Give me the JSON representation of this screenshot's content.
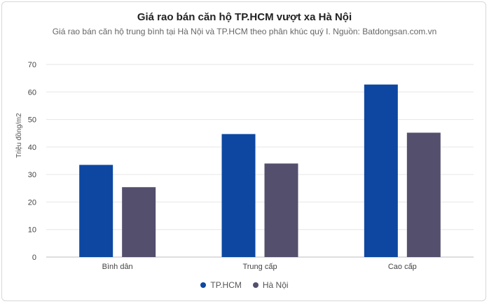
{
  "colors": {
    "grid": "#e6e6e6",
    "axis": "#bdbdbd",
    "tick_text": "#444444",
    "label_text": "#555555"
  },
  "chart_data": {
    "type": "bar",
    "title": "Giá rao bán căn hộ TP.HCM vượt xa Hà Nội",
    "subtitle": "Giá rao bán căn hộ trung bình tại Hà Nội và TP.HCM theo phân khúc quý I. Nguồn: Batdongsan.com.vn",
    "ylabel": "Triệu đồng/m2",
    "xlabel": "",
    "ylim": [
      0,
      70
    ],
    "yticks": [
      0,
      10,
      20,
      30,
      40,
      50,
      60,
      70
    ],
    "categories": [
      "Bình dân",
      "Trung cấp",
      "Cao cấp"
    ],
    "grid": true,
    "legend_position": "bottom-center",
    "series": [
      {
        "name": "TP.HCM",
        "color": "#0d47a1",
        "values": [
          33.5,
          44.7,
          62.7
        ]
      },
      {
        "name": "Hà Nội",
        "color": "#544f6d",
        "values": [
          25.4,
          34.0,
          45.2
        ]
      }
    ]
  }
}
